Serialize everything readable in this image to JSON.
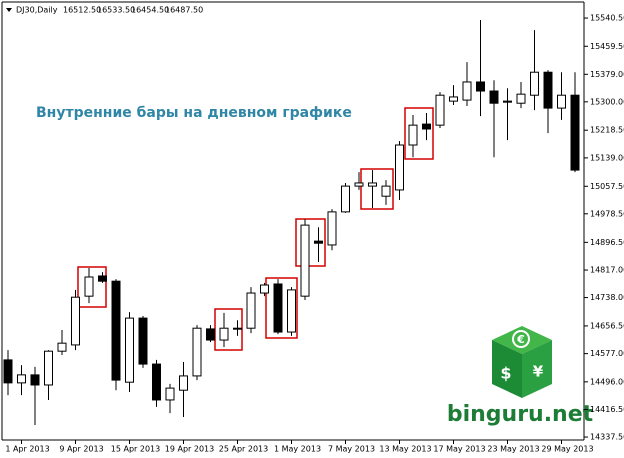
{
  "chart_data": {
    "type": "candlestick",
    "header": {
      "symbol": "DJ30,Daily",
      "values": [
        "16512.50",
        "16533.50",
        "16454.50",
        "16487.50"
      ]
    },
    "annotation": "Внутренние бары на дневном графике",
    "watermark": "binguru.net",
    "categories": [
      null,
      "1 Apr 2013",
      null,
      null,
      null,
      "9 Apr 2013",
      null,
      null,
      null,
      "15 Apr 2013",
      null,
      null,
      null,
      "19 Apr 2013",
      null,
      null,
      null,
      "25 Apr 2013",
      null,
      null,
      null,
      "1 May 2013",
      null,
      null,
      null,
      "7 May 2013",
      null,
      null,
      null,
      "13 May 2013",
      null,
      null,
      null,
      "17 May 2013",
      null,
      null,
      null,
      "23 May 2013",
      null,
      null,
      null,
      "29 May 2013",
      null
    ],
    "open": [
      14559,
      14493,
      14516,
      14487,
      14584,
      14602,
      14742,
      14800,
      14785,
      14495,
      14679,
      14547,
      14444,
      14472,
      14513,
      14648,
      14616,
      14650,
      14650,
      14751,
      14777,
      14639,
      14742,
      14900,
      14889,
      14984,
      15058,
      15058,
      15029,
      15047,
      15176,
      15236,
      15233,
      15302,
      15305,
      15357,
      15331,
      15299,
      15296,
      15319,
      15385,
      15282,
      15319
    ],
    "high": [
      14587,
      14544,
      14539,
      14587,
      14645,
      14760,
      14823,
      14811,
      14791,
      14696,
      14685,
      14559,
      14490,
      14553,
      14659,
      14659,
      14694,
      14673,
      14768,
      14780,
      14791,
      14768,
      14963,
      14940,
      14992,
      15067,
      15098,
      15104,
      15075,
      15187,
      15262,
      15268,
      15328,
      15348,
      15414,
      15535,
      15362,
      15339,
      15357,
      15506,
      15391,
      15385,
      15385
    ],
    "low": [
      14458,
      14458,
      14372,
      14444,
      14573,
      14587,
      14722,
      14780,
      14472,
      14467,
      14536,
      14424,
      14406,
      14395,
      14501,
      14610,
      14596,
      14628,
      14636,
      14742,
      14633,
      14628,
      14731,
      14840,
      14874,
      14981,
      15047,
      14995,
      15004,
      15018,
      15141,
      15190,
      15225,
      15291,
      15288,
      15259,
      15141,
      15190,
      15282,
      15276,
      15210,
      15248,
      15098
    ],
    "close": [
      14493,
      14516,
      14487,
      14584,
      14607,
      14739,
      14797,
      14785,
      14501,
      14679,
      14547,
      14444,
      14478,
      14513,
      14650,
      14616,
      14650,
      14650,
      14751,
      14774,
      14639,
      14760,
      14946,
      14894,
      14984,
      15058,
      15067,
      15067,
      15058,
      15176,
      15233,
      15222,
      15319,
      15314,
      15357,
      15331,
      15296,
      15302,
      15322,
      15385,
      15282,
      15319,
      15104
    ],
    "up_color": "#ffffff",
    "down_color": "#000000",
    "ylim": [
      14329,
      15578
    ],
    "yticks": [
      {
        "value": 14337.5,
        "label": "14337.50"
      },
      {
        "value": 14416.5,
        "label": "14416.50"
      },
      {
        "value": 14496,
        "label": "14496.00"
      },
      {
        "value": 14577,
        "label": "14577.00"
      },
      {
        "value": 14656.5,
        "label": "14656.50"
      },
      {
        "value": 14738,
        "label": "14738.00"
      },
      {
        "value": 14817,
        "label": "14817.00"
      },
      {
        "value": 14896.5,
        "label": "14896.50"
      },
      {
        "value": 14978.5,
        "label": "14978.50"
      },
      {
        "value": 15057.5,
        "label": "15057.50"
      },
      {
        "value": 15139,
        "label": "15139.00"
      },
      {
        "value": 15218.5,
        "label": "15218.50"
      },
      {
        "value": 15300,
        "label": "15300.00"
      },
      {
        "value": 15379,
        "label": "15379.00"
      },
      {
        "value": 15459.5,
        "label": "15459.50"
      },
      {
        "value": 15540.5,
        "label": "15540.50"
      }
    ]
  }
}
